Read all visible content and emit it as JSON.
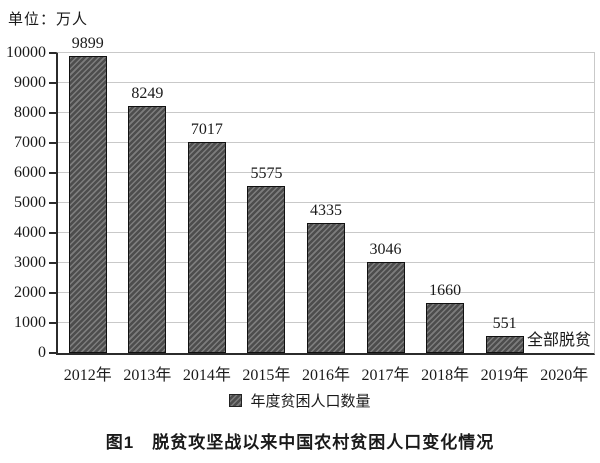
{
  "unit_label": "单位：万人",
  "annotation": "全部脱贫",
  "legend": {
    "label": "年度贫困人口数量"
  },
  "title": "图1　脱贫攻坚战以来中国农村贫困人口变化情况",
  "colors": {
    "bar_fill": "#4d4d4d",
    "bar_hatch": "#7d7d7d",
    "bar_border": "#111111",
    "gridline": "#c9c9c9",
    "axis": "#2b2b2b",
    "text": "#1a1a1a",
    "background": "#ffffff"
  },
  "chart_data": {
    "type": "bar",
    "categories": [
      "2012年",
      "2013年",
      "2014年",
      "2015年",
      "2016年",
      "2017年",
      "2018年",
      "2019年",
      "2020年"
    ],
    "values": [
      9899,
      8249,
      7017,
      5575,
      4335,
      3046,
      1660,
      551,
      null
    ],
    "title": "图1　脱贫攻坚战以来中国农村贫困人口变化情况",
    "xlabel": "",
    "ylabel": "单位：万人",
    "ylim": [
      0,
      10000
    ],
    "ytick_step": 1000,
    "yticks": [
      0,
      1000,
      2000,
      3000,
      4000,
      5000,
      6000,
      7000,
      8000,
      9000,
      10000
    ],
    "grid": true,
    "legend_entries": [
      "年度贫困人口数量"
    ],
    "legend_position": "bottom-center",
    "annotations": [
      {
        "text": "全部脱贫",
        "category": "2020年",
        "y": 0
      }
    ]
  }
}
